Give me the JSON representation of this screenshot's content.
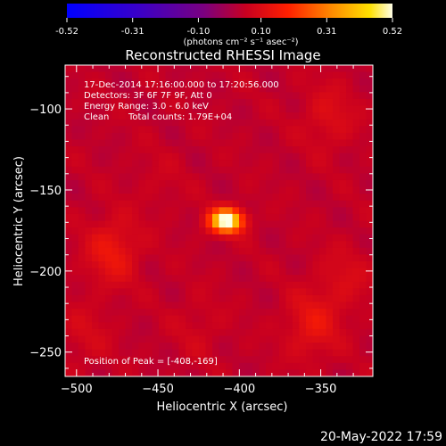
{
  "chart_data": {
    "type": "heatmap",
    "title": "Reconstructed RHESSI Image",
    "xlabel": "Heliocentric X (arcsec)",
    "ylabel": "Heliocentric Y (arcsec)",
    "xlim": [
      -507,
      -318
    ],
    "ylim": [
      -265,
      -73
    ],
    "x_ticks": [
      -500,
      -450,
      -400,
      -350
    ],
    "y_ticks": [
      -100,
      -150,
      -200,
      -250
    ],
    "colorbar": {
      "colormap": "rhessi-hot",
      "range": [
        -0.52,
        0.52
      ],
      "ticks": [
        "-0.52",
        "-0.31",
        "-0.10",
        "0.10",
        "0.31",
        "0.52"
      ],
      "unit_label": "(photons cm⁻² s⁻¹ asec⁻²)"
    },
    "peak": {
      "x": -408,
      "y": -169,
      "value": 0.52
    },
    "secondary_sources": [
      {
        "x": -478,
        "y": -188,
        "value": 0.14
      },
      {
        "x": -355,
        "y": -233,
        "value": 0.13
      },
      {
        "x": -345,
        "y": -105,
        "value": 0.1
      },
      {
        "x": -335,
        "y": -205,
        "value": 0.09
      },
      {
        "x": -495,
        "y": -240,
        "value": 0.08
      },
      {
        "x": -425,
        "y": -235,
        "value": 0.07
      },
      {
        "x": -450,
        "y": -145,
        "value": 0.06
      }
    ],
    "background_level": 0.04,
    "annotations": {
      "time_range": "17-Dec-2014 17:16:00.000 to 17:20:56.000",
      "detectors": "Detectors: 3F 6F 7F 9F, Att 0",
      "energy_range": "Energy Range: 3.0 - 6.0 keV",
      "method": "Clean",
      "total_counts": "Total counts: 1.79E+04",
      "peak_position": "Position of Peak = [-408,-169]"
    }
  },
  "footer": {
    "date": "20-May-2022 17:59"
  }
}
